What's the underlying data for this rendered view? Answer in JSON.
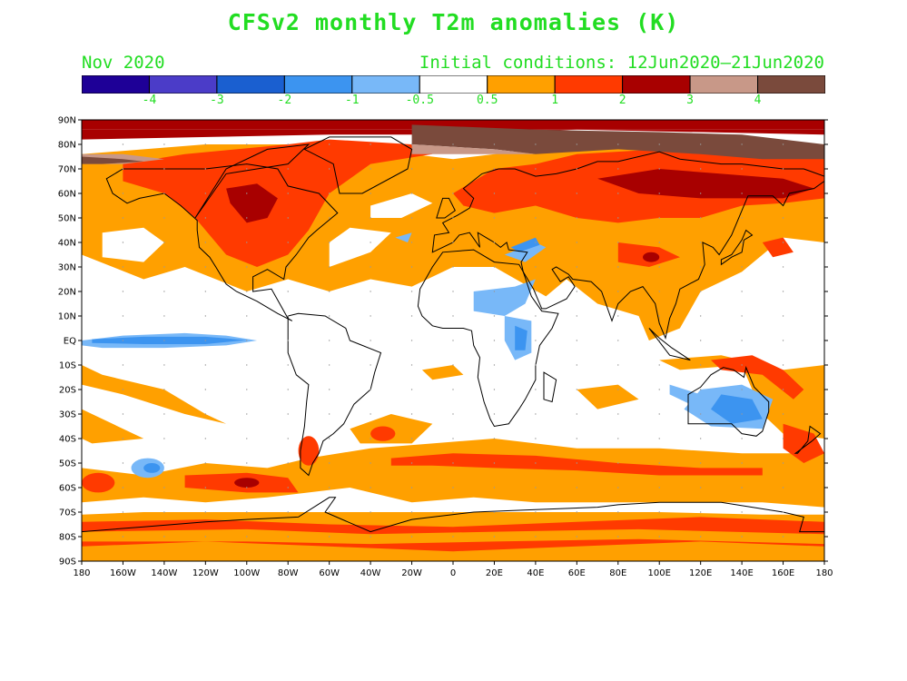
{
  "header": {
    "title": "CFSv2 monthly T2m anomalies (K)",
    "month": "Nov 2020",
    "initial_conditions": "Initial conditions: 12Jun2020–21Jun2020"
  },
  "colorbar": {
    "colors": [
      "#1e0097",
      "#4b3cc8",
      "#1a5fd0",
      "#3c94f0",
      "#78b8f8",
      "#ffffff",
      "#ffa000",
      "#ff3a00",
      "#a80000",
      "#c89888",
      "#7a4a3c"
    ],
    "tick_labels": [
      "-4",
      "-3",
      "-2",
      "-1",
      "-0.5",
      "0.5",
      "1",
      "2",
      "3",
      "4"
    ]
  },
  "map": {
    "lat_labels": [
      "90N",
      "80N",
      "70N",
      "60N",
      "50N",
      "40N",
      "30N",
      "20N",
      "10N",
      "EQ",
      "10S",
      "20S",
      "30S",
      "40S",
      "50S",
      "60S",
      "70S",
      "80S",
      "90S"
    ],
    "lon_labels": [
      "180",
      "160W",
      "140W",
      "120W",
      "100W",
      "80W",
      "60W",
      "40W",
      "20W",
      "0",
      "20E",
      "40E",
      "60E",
      "80E",
      "100E",
      "120E",
      "140E",
      "160E",
      "180"
    ],
    "palette": {
      "white": "#ffffff",
      "orange": "#ffa000",
      "red": "#ff3a00",
      "darkred": "#a80000",
      "pink": "#c89888",
      "brown": "#7a4a3c",
      "lightblue": "#78b8f8",
      "blue": "#3c94f0"
    }
  }
}
